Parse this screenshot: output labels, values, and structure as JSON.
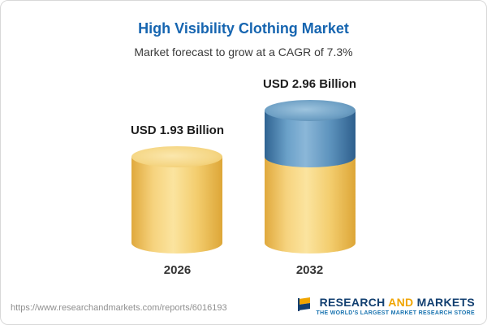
{
  "title": "High Visibility Clothing Market",
  "subtitle": "Market forecast to grow at a CAGR of 7.3%",
  "chart_data": {
    "type": "bar",
    "categories": [
      "2026",
      "2032"
    ],
    "values": [
      1.93,
      2.96
    ],
    "value_labels": [
      "USD 1.93 Billion",
      "USD 2.96 Billion"
    ],
    "unit": "USD Billion",
    "title": "High Visibility Clothing Market",
    "subtitle": "Market forecast to grow at a CAGR of 7.3%",
    "cagr": "7.3%",
    "bar_colors": {
      "base_segment": "#f3cd6e",
      "growth_segment": "#5d93bd"
    },
    "legend_position": "none",
    "grid": false
  },
  "footer": {
    "url": "https://www.researchandmarkets.com/reports/6016193",
    "logo_word_1": "RESEARCH",
    "logo_word_2": "AND",
    "logo_word_3": "MARKETS",
    "tagline": "THE WORLD'S LARGEST MARKET RESEARCH STORE"
  },
  "colors": {
    "title_blue": "#1665b0",
    "logo_blue": "#123f70",
    "logo_gold": "#f0a500",
    "tagline_blue": "#1a74b0"
  }
}
